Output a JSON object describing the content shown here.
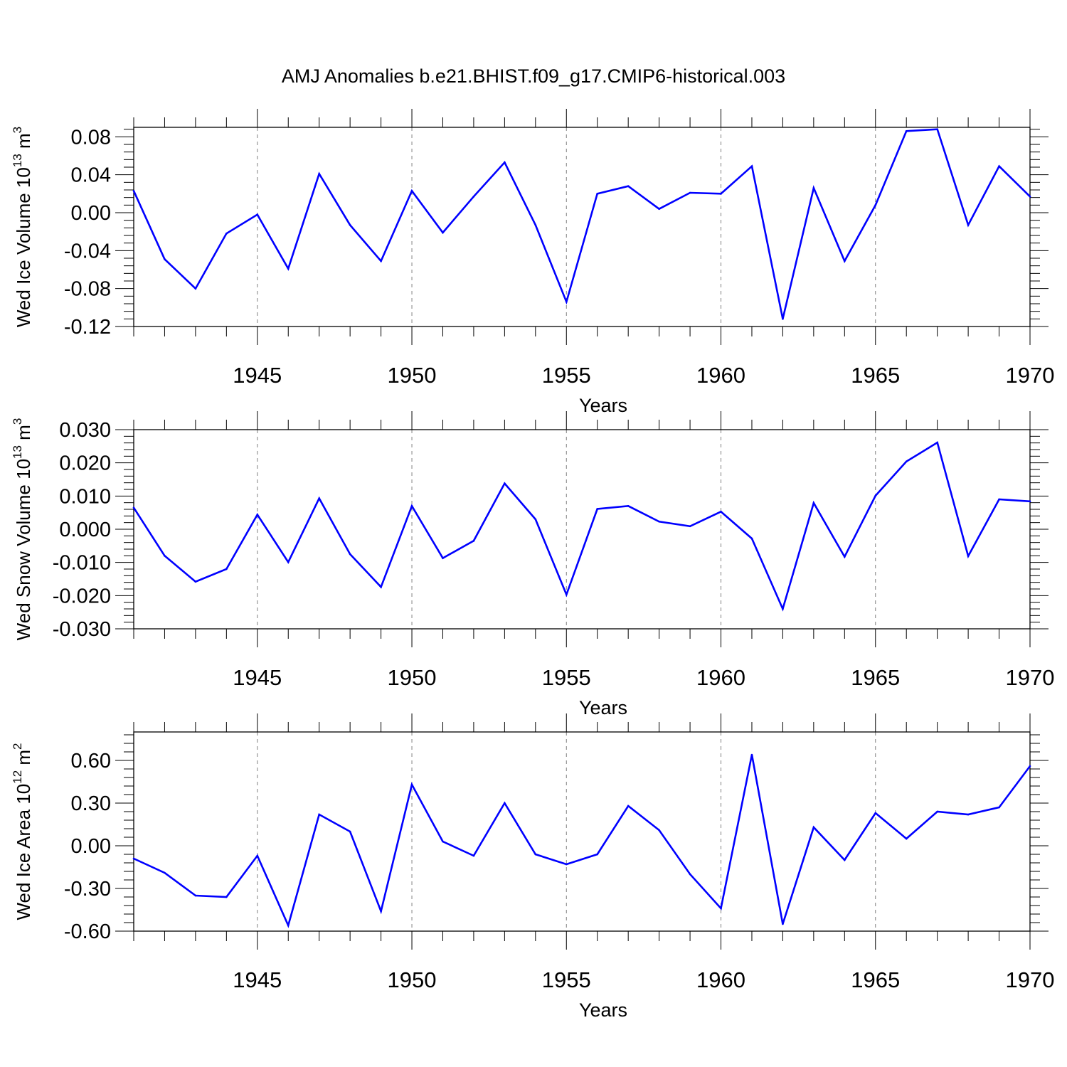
{
  "title": "AMJ Anomalies b.e21.BHIST.f09_g17.CMIP6-historical.003",
  "colors": {
    "line": "#0000ff",
    "frame": "#000000",
    "grid": "#808080"
  },
  "chart_data": [
    {
      "type": "line",
      "xlabel": "Years",
      "ylabel": {
        "prefix": "Wed Ice Volume 10",
        "exp": "13",
        "unit": " m",
        "unit_exp": "3"
      },
      "xlim": [
        1941,
        1970
      ],
      "ylim": [
        -0.12,
        0.09
      ],
      "xticks": [
        "1945",
        "1950",
        "1955",
        "1960",
        "1965",
        "1970"
      ],
      "yticks": [
        "0.08",
        "0.04",
        "0.00",
        "-0.04",
        "-0.08",
        "-0.12"
      ],
      "grid": "x dashed",
      "x": [
        1941,
        1942,
        1943,
        1944,
        1945,
        1946,
        1947,
        1948,
        1949,
        1950,
        1951,
        1952,
        1953,
        1954,
        1955,
        1956,
        1957,
        1958,
        1959,
        1960,
        1961,
        1962,
        1963,
        1964,
        1965,
        1966,
        1967,
        1968,
        1969,
        1970
      ],
      "values": [
        0.023,
        -0.049,
        -0.08,
        -0.022,
        -0.002,
        -0.059,
        0.041,
        -0.013,
        -0.051,
        0.023,
        -0.021,
        0.017,
        0.053,
        -0.013,
        -0.094,
        0.02,
        0.028,
        0.004,
        0.021,
        0.02,
        0.049,
        -0.112,
        0.026,
        -0.051,
        0.008,
        0.086,
        0.088,
        -0.013,
        0.049,
        0.017
      ]
    },
    {
      "type": "line",
      "xlabel": "Years",
      "ylabel": {
        "prefix": "Wed Snow Volume 10",
        "exp": "13",
        "unit": " m",
        "unit_exp": "3"
      },
      "xlim": [
        1941,
        1970
      ],
      "ylim": [
        -0.03,
        0.03
      ],
      "xticks": [
        "1945",
        "1950",
        "1955",
        "1960",
        "1965",
        "1970"
      ],
      "yticks": [
        "0.030",
        "0.020",
        "0.010",
        "0.000",
        "-0.010",
        "-0.020",
        "-0.030"
      ],
      "grid": "x dashed",
      "x": [
        1941,
        1942,
        1943,
        1944,
        1945,
        1946,
        1947,
        1948,
        1949,
        1950,
        1951,
        1952,
        1953,
        1954,
        1955,
        1956,
        1957,
        1958,
        1959,
        1960,
        1961,
        1962,
        1963,
        1964,
        1965,
        1966,
        1967,
        1968,
        1969,
        1970
      ],
      "values": [
        0.0065,
        -0.008,
        -0.0158,
        -0.012,
        0.0044,
        -0.0099,
        0.0093,
        -0.0075,
        -0.0174,
        0.007,
        -0.0087,
        -0.0035,
        0.0138,
        0.003,
        -0.0197,
        0.0061,
        0.007,
        0.0023,
        0.0009,
        0.0053,
        -0.0028,
        -0.024,
        0.0079,
        -0.0083,
        0.0101,
        0.0204,
        0.0261,
        -0.0081,
        0.009,
        0.0084
      ]
    },
    {
      "type": "line",
      "xlabel": "Years",
      "ylabel": {
        "prefix": "Wed Ice Area 10",
        "exp": "12",
        "unit": " m",
        "unit_exp": "2"
      },
      "xlim": [
        1941,
        1970
      ],
      "ylim": [
        -0.6,
        0.8
      ],
      "xticks": [
        "1945",
        "1950",
        "1955",
        "1960",
        "1965",
        "1970"
      ],
      "yticks": [
        "0.60",
        "0.30",
        "0.00",
        "-0.30",
        "-0.60"
      ],
      "grid": "x dashed",
      "x": [
        1941,
        1942,
        1943,
        1944,
        1945,
        1946,
        1947,
        1948,
        1949,
        1950,
        1951,
        1952,
        1953,
        1954,
        1955,
        1956,
        1957,
        1958,
        1959,
        1960,
        1961,
        1962,
        1963,
        1964,
        1965,
        1966,
        1967,
        1968,
        1969,
        1970
      ],
      "values": [
        -0.09,
        -0.19,
        -0.35,
        -0.36,
        -0.07,
        -0.56,
        0.22,
        0.1,
        -0.46,
        0.43,
        0.03,
        -0.07,
        0.3,
        -0.06,
        -0.13,
        -0.06,
        0.28,
        0.11,
        -0.2,
        -0.44,
        0.64,
        -0.55,
        0.13,
        -0.1,
        0.23,
        0.05,
        0.24,
        0.22,
        0.27,
        0.56
      ]
    }
  ]
}
